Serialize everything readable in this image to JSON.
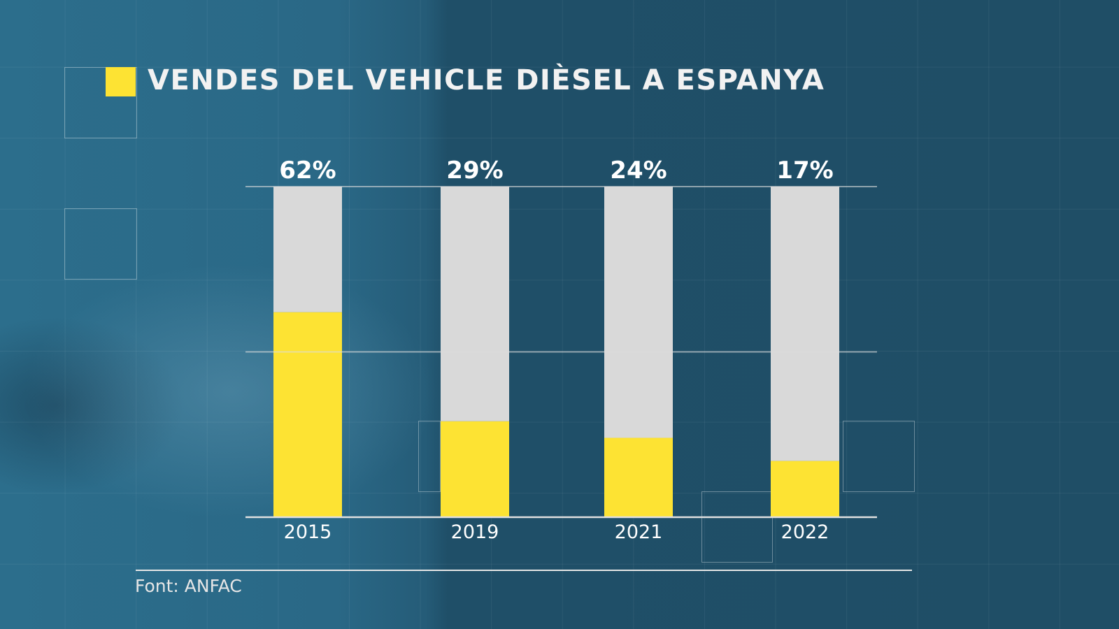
{
  "chart_data": {
    "type": "bar",
    "title": "VENDES DEL VEHICLE DIÈSEL A ESPANYA",
    "categories": [
      "2015",
      "2019",
      "2021",
      "2022"
    ],
    "values": [
      62,
      29,
      24,
      17
    ],
    "value_labels": [
      "62%",
      "29%",
      "24%",
      "17%"
    ],
    "ylim": [
      0,
      100
    ],
    "stacked_remainder": true,
    "colors": {
      "value": "#fde333",
      "remainder": "#d9d9d9",
      "title_marker": "#fde333"
    },
    "gridlines": [
      0,
      50,
      100
    ]
  },
  "source": "Font: ANFAC"
}
